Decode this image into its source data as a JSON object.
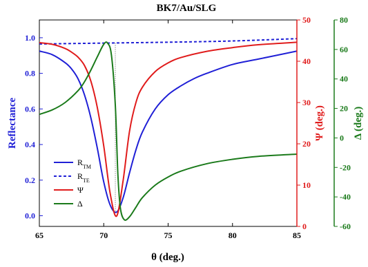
{
  "chart_data": {
    "type": "line",
    "title": "BK7/Au/SLG",
    "xlabel": "θ (deg.)",
    "xlim": [
      65,
      85
    ],
    "xticks": [
      "65",
      "70",
      "75",
      "80",
      "85"
    ],
    "axes": [
      {
        "id": "left",
        "label": "Reflectance",
        "color": "#1f1fd6",
        "ylim": [
          -0.06,
          1.1
        ],
        "ticks": [
          "0.0",
          "0.2",
          "0.4",
          "0.6",
          "0.8",
          "1.0"
        ],
        "tick_values": [
          0,
          0.2,
          0.4,
          0.6,
          0.8,
          1.0
        ]
      },
      {
        "id": "right1",
        "label_symbol": "Ψ",
        "label_rest": " (deg.)",
        "color": "#e01b1b",
        "ylim": [
          0,
          50
        ],
        "ticks": [
          "0",
          "10",
          "20",
          "30",
          "40",
          "50"
        ],
        "tick_values": [
          0,
          10,
          20,
          30,
          40,
          50
        ]
      },
      {
        "id": "right2",
        "label_symbol": "Δ",
        "label_rest": " (deg.)",
        "color": "#1a7a1a",
        "ylim": [
          -60,
          80
        ],
        "ticks": [
          "-60",
          "-40",
          "-20",
          "0",
          "20",
          "40",
          "60",
          "80"
        ],
        "tick_values": [
          -60,
          -40,
          -20,
          0,
          20,
          40,
          60,
          80
        ]
      }
    ],
    "series": [
      {
        "name": "R",
        "sub": "TM",
        "axis": "left",
        "color": "#1f1fd6",
        "dash": false,
        "x": [
          65,
          66,
          67,
          67.5,
          68,
          68.5,
          69,
          69.5,
          70,
          70.5,
          71,
          71.5,
          72,
          72.5,
          73,
          74,
          75,
          76,
          77,
          78,
          80,
          82,
          85
        ],
        "y": [
          0.925,
          0.905,
          0.86,
          0.825,
          0.77,
          0.68,
          0.55,
          0.38,
          0.19,
          0.06,
          0.02,
          0.1,
          0.24,
          0.37,
          0.47,
          0.6,
          0.68,
          0.73,
          0.77,
          0.8,
          0.85,
          0.88,
          0.925
        ]
      },
      {
        "name": "R",
        "sub": "TE",
        "axis": "left",
        "color": "#1f1fd6",
        "dash": true,
        "x": [
          65,
          70,
          75,
          80,
          85
        ],
        "y": [
          0.965,
          0.97,
          0.975,
          0.982,
          0.995
        ]
      },
      {
        "name": "Ψ",
        "sub": "",
        "axis": "right1",
        "color": "#e01b1b",
        "dash": false,
        "x": [
          65,
          66,
          67,
          67.5,
          68,
          68.5,
          69,
          69.5,
          70,
          70.5,
          71,
          71.5,
          72,
          72.5,
          73,
          74,
          75,
          76,
          78,
          80,
          82,
          85
        ],
        "y": [
          44.5,
          44.1,
          43.1,
          42.2,
          41,
          39,
          35.2,
          28.8,
          19.5,
          8,
          2.5,
          11,
          23,
          30,
          33.7,
          37.5,
          39.6,
          40.9,
          42.4,
          43.3,
          44,
          44.6
        ]
      },
      {
        "name": "Δ",
        "sub": "",
        "axis": "right2",
        "color": "#1a7a1a",
        "dash": false,
        "x": [
          65,
          66,
          67,
          68,
          68.5,
          69,
          69.5,
          70,
          70.3,
          70.6,
          70.9,
          71.1,
          71.3,
          71.6,
          72,
          72.5,
          73,
          74,
          75,
          76,
          78,
          80,
          82,
          85
        ],
        "y": [
          16,
          19,
          24,
          32,
          38,
          46,
          55,
          63.5,
          64.3,
          56,
          22,
          -25,
          -48,
          -55.5,
          -53.5,
          -47,
          -40.5,
          -32,
          -26.5,
          -22.5,
          -17.5,
          -14.5,
          -12.5,
          -11
        ]
      }
    ],
    "legend": {
      "position": "lower-left"
    },
    "grid": false,
    "annotation": "dotted vertical line at θ ≈ 70.9 marking resonance"
  }
}
